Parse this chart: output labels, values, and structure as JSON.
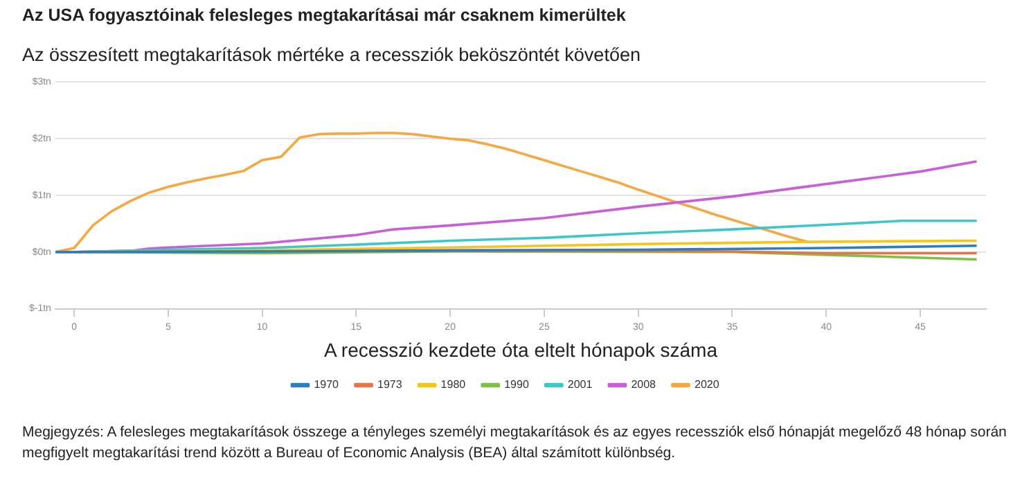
{
  "chart_data": {
    "type": "line",
    "title": "Az USA fogyasztóinak felesleges megtakarításai már csaknem kimerültek",
    "subtitle": "Az összesített megtakarítások mértéke a recessziók beköszöntét követően",
    "xlabel": "A recesszió kezdete óta eltelt hónapok száma",
    "annotations": [
      "Megjegyzés: A felesleges megtakarítások összege a tényleges személyi megtakarítások és az egyes recessziók első hónapját megelőző 48 hónap során megfigyelt megtakarítási trend között a Bureau of Economic Analysis (BEA) által számított különbség."
    ],
    "xlim": [
      -1,
      48.5
    ],
    "xticks": [
      0,
      5,
      10,
      15,
      20,
      25,
      30,
      35,
      40,
      45
    ],
    "ylim": [
      -1,
      3
    ],
    "yticks": [
      {
        "value": -1,
        "label": "$-1tn"
      },
      {
        "value": 0,
        "label": "$0tn"
      },
      {
        "value": 1,
        "label": "$1tn"
      },
      {
        "value": 2,
        "label": "$2tn"
      },
      {
        "value": 3,
        "label": "$3tn"
      }
    ],
    "grid": "y",
    "legend": "bottom",
    "marker": "none",
    "line_style": "solid",
    "series": [
      {
        "name": "1970",
        "color": "#2a7fc1",
        "x": [
          -1,
          0,
          10,
          20,
          30,
          40,
          48
        ],
        "values": [
          0,
          0,
          0.01,
          0.03,
          0.04,
          0.07,
          0.11
        ]
      },
      {
        "name": "1973",
        "color": "#e8744a",
        "x": [
          -1,
          0,
          10,
          20,
          30,
          35,
          40,
          48
        ],
        "values": [
          0,
          0,
          0.01,
          0.02,
          0.02,
          0.01,
          -0.02,
          -0.02
        ]
      },
      {
        "name": "1980",
        "color": "#f5c518",
        "x": [
          -1,
          0,
          10,
          20,
          30,
          39,
          48
        ],
        "values": [
          0,
          0,
          0.03,
          0.08,
          0.14,
          0.18,
          0.2
        ]
      },
      {
        "name": "1990",
        "color": "#7cc142",
        "x": [
          -1,
          0,
          10,
          20,
          35,
          40,
          48
        ],
        "values": [
          0,
          0,
          -0.02,
          0.01,
          0,
          -0.05,
          -0.13
        ]
      },
      {
        "name": "2001",
        "color": "#3ec6c9",
        "x": [
          -1,
          0,
          5,
          10,
          15,
          20,
          25,
          30,
          35,
          40,
          44,
          48
        ],
        "values": [
          0,
          0,
          0.04,
          0.07,
          0.13,
          0.2,
          0.25,
          0.33,
          0.4,
          0.48,
          0.55,
          0.55
        ]
      },
      {
        "name": "2008",
        "color": "#c95fd6",
        "x": [
          -1,
          0,
          3,
          4,
          5,
          10,
          15,
          17,
          20,
          25,
          30,
          35,
          40,
          45,
          48
        ],
        "values": [
          0,
          0,
          0.02,
          0.06,
          0.08,
          0.15,
          0.3,
          0.4,
          0.47,
          0.6,
          0.8,
          0.98,
          1.2,
          1.42,
          1.6
        ]
      },
      {
        "name": "2020",
        "color": "#f5a742",
        "x": [
          -1,
          0,
          1,
          2,
          3,
          4,
          5,
          6,
          7,
          8,
          9,
          10,
          11,
          12,
          13,
          14,
          15,
          16,
          17,
          18,
          19,
          20,
          21,
          22,
          23,
          24,
          25,
          26,
          27,
          28,
          29,
          30,
          31,
          32,
          33,
          34,
          35,
          36,
          37,
          38,
          39
        ],
        "values": [
          0,
          0.07,
          0.47,
          0.72,
          0.9,
          1.05,
          1.15,
          1.23,
          1.3,
          1.36,
          1.43,
          1.62,
          1.68,
          2.02,
          2.08,
          2.09,
          2.09,
          2.1,
          2.1,
          2.08,
          2.04,
          2.0,
          1.97,
          1.9,
          1.82,
          1.72,
          1.62,
          1.52,
          1.42,
          1.32,
          1.22,
          1.1,
          0.99,
          0.88,
          0.78,
          0.67,
          0.57,
          0.47,
          0.37,
          0.27,
          0.18
        ]
      }
    ]
  }
}
